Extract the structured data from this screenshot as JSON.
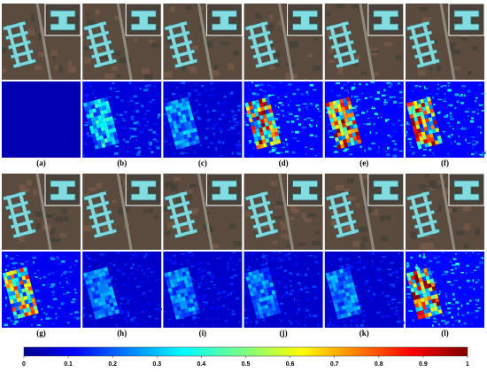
{
  "panels": {
    "labels": [
      "(a)",
      "(b)",
      "(c)",
      "(d)",
      "(e)",
      "(f)",
      "(g)",
      "(h)",
      "(i)",
      "(j)",
      "(k)",
      "(l)"
    ]
  },
  "colorbar": {
    "lim": [
      0,
      1
    ],
    "ticks": [
      0,
      0.1,
      0.2,
      0.3,
      0.4,
      0.5,
      0.6,
      0.7,
      0.8,
      0.9,
      1
    ]
  }
}
